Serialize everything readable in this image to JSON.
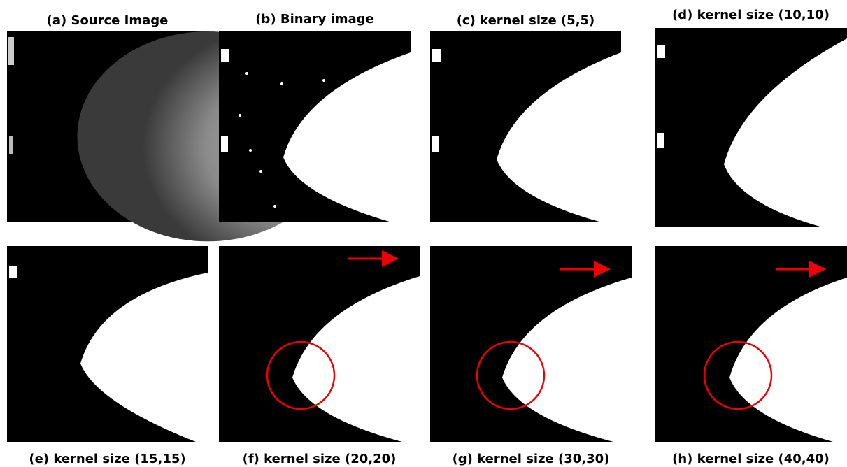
{
  "panels": [
    {
      "caption": "(a) Source Image"
    },
    {
      "caption": "(b) Binary image"
    },
    {
      "caption": "(c) kernel size (5,5)"
    },
    {
      "caption": "(d) kernel size (10,10)"
    },
    {
      "caption": "(e) kernel size (15,15)"
    },
    {
      "caption": "(f) kernel size (20,20)"
    },
    {
      "caption": "(g) kernel size (30,30)"
    },
    {
      "caption": "(h) kernel size (40,40)"
    }
  ]
}
